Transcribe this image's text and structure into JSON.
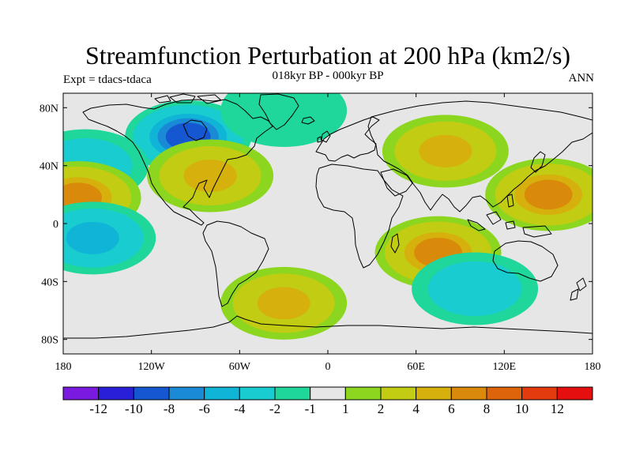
{
  "title": "Streamfunction Perturbation at 200 hPa (km2/s)",
  "subtitle": "018kyr BP - 000kyr BP",
  "left_label": "Expt = tdacs-tdaca",
  "right_label": "ANN",
  "lat_ticks": [
    "80N",
    "40N",
    "0",
    "40S",
    "80S"
  ],
  "lon_ticks": [
    "180",
    "120W",
    "60W",
    "0",
    "60E",
    "120E",
    "180"
  ],
  "colorbar": {
    "colors": [
      "#7a19e0",
      "#2a1fd9",
      "#1457d1",
      "#1a8ad6",
      "#0fb4d6",
      "#19ccd0",
      "#1fd69b",
      "#e6e6e6",
      "#8cd61f",
      "#c2cc12",
      "#d6b00c",
      "#d98a0a",
      "#de640b",
      "#e33b0d",
      "#e60f0f"
    ],
    "labels": [
      "-12",
      "-10",
      "-8",
      "-6",
      "-4",
      "-2",
      "-1",
      "1",
      "2",
      "4",
      "6",
      "8",
      "10",
      "12"
    ]
  },
  "chart_data": {
    "type": "heatmap",
    "title": "Streamfunction Perturbation at 200 hPa (km2/s)",
    "subtitle": "018kyr BP - 000kyr BP",
    "units": "km2/s",
    "levels": [
      -12,
      -10,
      -8,
      -6,
      -4,
      -2,
      -1,
      1,
      2,
      4,
      6,
      8,
      10,
      12
    ],
    "x_range": [
      -180,
      180
    ],
    "y_range": [
      -90,
      90
    ],
    "xlabel": "",
    "ylabel": "",
    "features": [
      {
        "name": "north-america-low",
        "lon": -95,
        "lat": 60,
        "value": -9
      },
      {
        "name": "north-pacific-low",
        "lon": -165,
        "lat": 40,
        "value": -4
      },
      {
        "name": "east-pacific-high",
        "lon": -170,
        "lat": 18,
        "value": 7
      },
      {
        "name": "south-pacific-low",
        "lon": -160,
        "lat": -10,
        "value": -5
      },
      {
        "name": "western-atlantic-high",
        "lon": -80,
        "lat": 33,
        "value": 5
      },
      {
        "name": "arctic-low",
        "lon": -30,
        "lat": 78,
        "value": -2
      },
      {
        "name": "europe-asia-high",
        "lon": 80,
        "lat": 50,
        "value": 6
      },
      {
        "name": "west-pacific-high",
        "lon": 150,
        "lat": 20,
        "value": 8
      },
      {
        "name": "indian-ocean-high",
        "lon": 75,
        "lat": -20,
        "value": 8
      },
      {
        "name": "south-atlantic-high",
        "lon": -30,
        "lat": -55,
        "value": 5
      },
      {
        "name": "south-indian-low",
        "lon": 100,
        "lat": -45,
        "value": -4
      }
    ]
  }
}
